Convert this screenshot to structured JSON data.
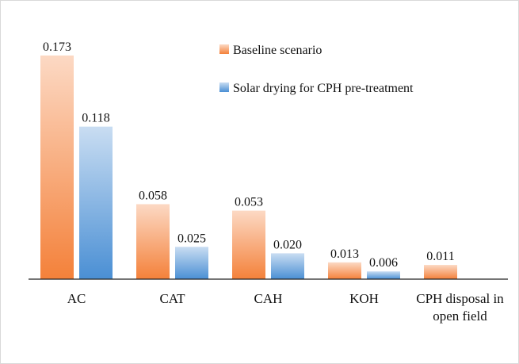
{
  "chart_data": {
    "type": "bar",
    "categories": [
      "AC",
      "CAT",
      "CAH",
      "KOH",
      "CPH disposal in open field"
    ],
    "series": [
      {
        "name": "Baseline scenario",
        "color": "#f4813a",
        "values": [
          0.173,
          0.058,
          0.053,
          0.013,
          0.011
        ],
        "value_labels": [
          "0.173",
          "0.058",
          "0.053",
          "0.013",
          "0.011"
        ]
      },
      {
        "name": "Solar drying for CPH pre-treatment",
        "color": "#4a8fd4",
        "values": [
          0.118,
          0.025,
          0.02,
          0.006,
          null
        ],
        "value_labels": [
          "0.118",
          "0.025",
          "0.020",
          "0.006",
          null
        ]
      }
    ],
    "ylim": [
      0,
      0.18
    ],
    "legend": "top-right"
  }
}
